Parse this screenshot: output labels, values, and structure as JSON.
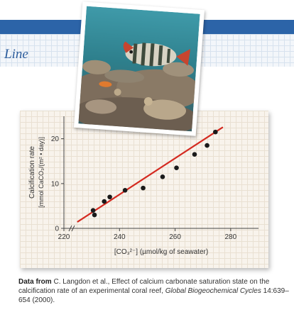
{
  "section": {
    "title": "Line"
  },
  "photo": {
    "subject": "reef-fish-on-coral"
  },
  "chart_data": {
    "type": "scatter",
    "title": "",
    "xlabel": "[CO₃²⁻] (µmol/kg of seawater)",
    "ylabel_line1": "Calcification rate",
    "ylabel_line2": "[mmol CaCO₃/(m² • day)]",
    "xlim": [
      220,
      290
    ],
    "ylim": [
      0,
      25
    ],
    "xticks": [
      220,
      240,
      260,
      280
    ],
    "yticks": [
      0,
      10,
      20
    ],
    "x_tick_labels": [
      "220",
      "240",
      "260",
      "280"
    ],
    "y_tick_labels": [
      "0",
      "10",
      "20"
    ],
    "grid": true,
    "legend": "none",
    "point_color": "#1a1a1a",
    "fit_color": "#d42a20",
    "points": [
      {
        "x": 230.5,
        "y": 4
      },
      {
        "x": 231,
        "y": 3
      },
      {
        "x": 234.5,
        "y": 6
      },
      {
        "x": 236.5,
        "y": 7
      },
      {
        "x": 242,
        "y": 8.5
      },
      {
        "x": 248.5,
        "y": 9
      },
      {
        "x": 255.5,
        "y": 11.5
      },
      {
        "x": 260.5,
        "y": 13.5
      },
      {
        "x": 267,
        "y": 16.5
      },
      {
        "x": 271.5,
        "y": 18.5
      },
      {
        "x": 274.5,
        "y": 21.5
      }
    ],
    "fit_line": {
      "x": [
        225,
        277
      ],
      "y": [
        1.5,
        22.5
      ]
    }
  },
  "caption": {
    "lead": "Data from",
    "authors": " C. Langdon et al., Effect of calcium carbonate saturation state on the calcification rate of an experimental coral reef, ",
    "journal": "Global Biogeochemical Cycles",
    "citation": " 14:639–654 (2000)."
  }
}
